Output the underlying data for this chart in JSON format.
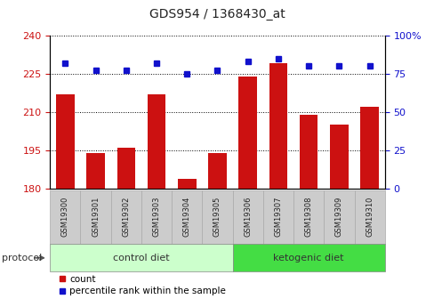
{
  "title": "GDS954 / 1368430_at",
  "samples": [
    "GSM19300",
    "GSM19301",
    "GSM19302",
    "GSM19303",
    "GSM19304",
    "GSM19305",
    "GSM19306",
    "GSM19307",
    "GSM19308",
    "GSM19309",
    "GSM19310"
  ],
  "counts": [
    217,
    194,
    196,
    217,
    184,
    194,
    224,
    229,
    209,
    205,
    212
  ],
  "percentile_ranks": [
    82,
    77,
    77,
    82,
    75,
    77,
    83,
    85,
    80,
    80,
    80
  ],
  "left_ylim": [
    180,
    240
  ],
  "left_yticks": [
    180,
    195,
    210,
    225,
    240
  ],
  "right_ylim": [
    0,
    100
  ],
  "right_yticks": [
    0,
    25,
    50,
    75,
    100
  ],
  "right_yticklabels": [
    "0",
    "25",
    "50",
    "75",
    "100%"
  ],
  "bar_color": "#cc1111",
  "dot_color": "#1111cc",
  "left_tick_color": "#cc1111",
  "right_tick_color": "#1111cc",
  "grid_color": "#000000",
  "n_control": 6,
  "n_ketogenic": 5,
  "control_label": "control diet",
  "ketogenic_label": "ketogenic diet",
  "protocol_label": "protocol",
  "legend_count_label": "count",
  "legend_percentile_label": "percentile rank within the sample",
  "xlabels_bg": "#cccccc",
  "control_bg": "#ccffcc",
  "ketogenic_bg": "#44dd44"
}
